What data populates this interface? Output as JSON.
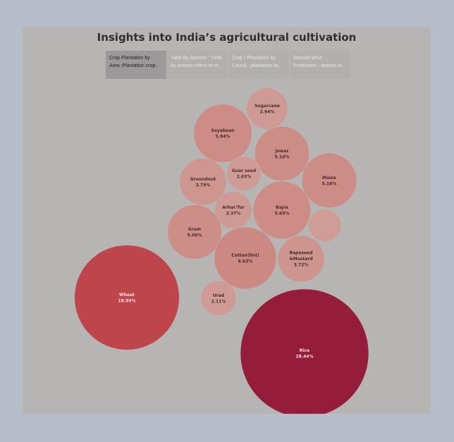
{
  "title": "Insights into India’s agricultural cultivation",
  "tabs": [
    {
      "line1": "Crop Plantation by",
      "line2": "Area :Plantation crop..",
      "active": true
    },
    {
      "line1": "Yield By Season : Yield",
      "line2": "by season refers to m..",
      "active": false
    },
    {
      "line1": "Crop ( Plantation by",
      "line2": "Count) : plantation by..",
      "active": false
    },
    {
      "line1": "Season Wise",
      "line2": "Production : season w..",
      "active": false
    }
  ],
  "chart_data": {
    "type": "bubble",
    "title": "",
    "value_unit": "%",
    "color_scale": [
      "#d19c96",
      "#961c3b"
    ],
    "points": [
      {
        "label": "Sugarcane",
        "line1": "Sugarcane",
        "line2": "",
        "pct_label": "2.94%",
        "value": 2.94,
        "color": "#d09a94"
      },
      {
        "label": "Soyabean",
        "line1": "Soyabean",
        "line2": "",
        "pct_label": "5.84%",
        "value": 5.84,
        "color": "#cd8c86"
      },
      {
        "label": "Jowar",
        "line1": "Jowar",
        "line2": "",
        "pct_label": "5.10%",
        "value": 5.1,
        "color": "#cd8d87"
      },
      {
        "label": "Maize",
        "line1": "Maize",
        "line2": "",
        "pct_label": "5.16%",
        "value": 5.16,
        "color": "#cd8d87"
      },
      {
        "label": "Guar seed",
        "line1": "Guar seed",
        "line2": "",
        "pct_label": "2.03%",
        "value": 2.03,
        "color": "#d09b95"
      },
      {
        "label": "Groundnut",
        "line1": "Groundnut",
        "line2": "",
        "pct_label": "3.79%",
        "value": 3.79,
        "color": "#cf9690"
      },
      {
        "label": "Arhar/Tur",
        "line1": "Arhar/Tur",
        "line2": "",
        "pct_label": "2.37%",
        "value": 2.37,
        "color": "#d09a94"
      },
      {
        "label": "Bajra",
        "line1": "Bajra",
        "line2": "",
        "pct_label": "5.69%",
        "value": 5.69,
        "color": "#cd8c86"
      },
      {
        "label": "",
        "line1": "",
        "line2": "",
        "pct_label": "",
        "value": 1.8,
        "color": "#d09c96"
      },
      {
        "label": "Gram",
        "line1": "Gram",
        "line2": "",
        "pct_label": "5.06%",
        "value": 5.06,
        "color": "#cd8e88"
      },
      {
        "label": "Cotton(lint)",
        "line1": "Cotton(lint)",
        "line2": "",
        "pct_label": "6.63%",
        "value": 6.63,
        "color": "#cc8983"
      },
      {
        "label": "Rapeseed &Mustard",
        "line1": "Rapeseed",
        "line2": "&Mustard",
        "pct_label": "3.72%",
        "value": 3.72,
        "color": "#ce948e"
      },
      {
        "label": "Wheat",
        "line1": "Wheat",
        "line2": "",
        "pct_label": "18.99%",
        "value": 18.99,
        "color": "#bd454b"
      },
      {
        "label": "Urad",
        "line1": "Urad",
        "line2": "",
        "pct_label": "2.11%",
        "value": 2.11,
        "color": "#d09b95"
      },
      {
        "label": "Rice",
        "line1": "Rice",
        "line2": "",
        "pct_label": "28.44%",
        "value": 28.44,
        "color": "#961c3b"
      }
    ]
  }
}
